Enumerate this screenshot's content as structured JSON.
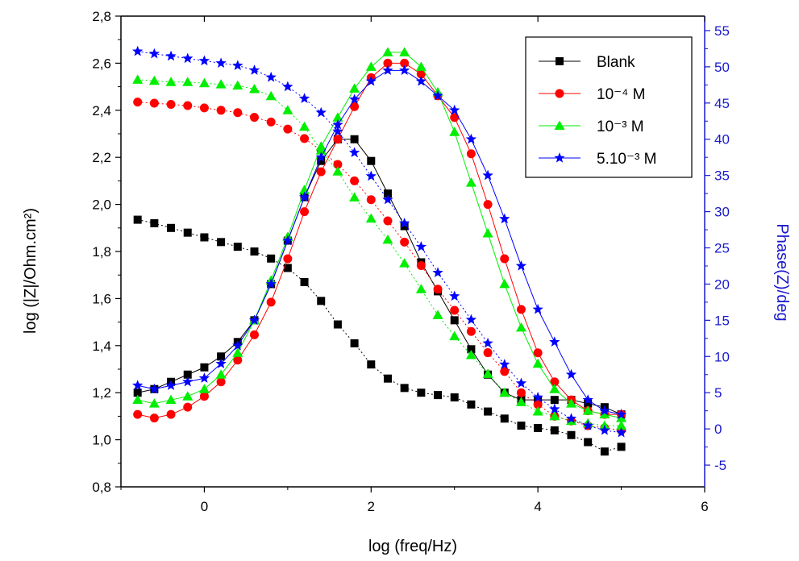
{
  "chart_data": {
    "type": "scatter",
    "xlabel": "log (freq/Hz)",
    "ylabel": "log (|Z|/Ohm.cm²)",
    "ylabel_right": "Phase(Z)/deg",
    "xlim": [
      -1,
      6
    ],
    "ylim": [
      0.8,
      2.8
    ],
    "ylim_right": [
      -8,
      57
    ],
    "x_ticks": [
      0,
      2,
      4,
      6
    ],
    "x_tick_labels": [
      "0",
      "2",
      "4",
      "6"
    ],
    "y_ticks": [
      0.8,
      1.0,
      1.2,
      1.4,
      1.6,
      1.8,
      2.0,
      2.2,
      2.4,
      2.6,
      2.8
    ],
    "y_tick_labels": [
      "0,8",
      "1,0",
      "1,2",
      "1,4",
      "1,6",
      "1,8",
      "2,0",
      "2,2",
      "2,4",
      "2,6",
      "2,8"
    ],
    "y_right_ticks": [
      -5,
      0,
      5,
      10,
      15,
      20,
      25,
      30,
      35,
      40,
      45,
      50,
      55
    ],
    "y_right_tick_labels": [
      "-5",
      "0",
      "5",
      "10",
      "15",
      "20",
      "25",
      "30",
      "35",
      "40",
      "45",
      "50",
      "55"
    ],
    "grid": false,
    "legend_position": "top-right",
    "x": [
      -0.8,
      -0.6,
      -0.4,
      -0.2,
      0.0,
      0.2,
      0.4,
      0.6,
      0.8,
      1.0,
      1.2,
      1.4,
      1.6,
      1.8,
      2.0,
      2.2,
      2.4,
      2.6,
      2.8,
      3.0,
      3.2,
      3.4,
      3.6,
      3.8,
      4.0,
      4.2,
      4.4,
      4.6,
      4.8,
      5.0
    ],
    "series": [
      {
        "name": "Blank",
        "color": "#000000",
        "marker": "square",
        "modulus": [
          1.935,
          1.92,
          1.9,
          1.88,
          1.86,
          1.84,
          1.82,
          1.8,
          1.77,
          1.73,
          1.67,
          1.59,
          1.49,
          1.41,
          1.32,
          1.26,
          1.22,
          1.2,
          1.19,
          1.18,
          1.15,
          1.12,
          1.09,
          1.06,
          1.05,
          1.04,
          1.02,
          0.99,
          0.95,
          0.97
        ],
        "phase": [
          5.0,
          5.5,
          6.5,
          7.5,
          8.5,
          10.0,
          12.0,
          15.0,
          20.0,
          26.0,
          32.0,
          37.0,
          40.0,
          40.0,
          37.0,
          32.5,
          28.0,
          23.0,
          19.0,
          15.0,
          11.0,
          7.5,
          5.0,
          4.0,
          4.0,
          4.0,
          4.0,
          3.5,
          3.0,
          2.0
        ]
      },
      {
        "name": "10⁻⁴ M",
        "color": "#ff0000",
        "marker": "circle",
        "modulus": [
          2.435,
          2.43,
          2.425,
          2.42,
          2.41,
          2.4,
          2.39,
          2.37,
          2.35,
          2.32,
          2.28,
          2.23,
          2.17,
          2.1,
          2.02,
          1.93,
          1.84,
          1.74,
          1.64,
          1.55,
          1.46,
          1.37,
          1.29,
          1.2,
          1.15,
          1.1,
          1.08,
          1.06,
          1.05,
          1.04
        ],
        "phase": [
          2.0,
          1.5,
          2.0,
          3.0,
          4.5,
          6.5,
          9.5,
          13.0,
          17.5,
          23.5,
          30.0,
          35.5,
          40.0,
          44.5,
          48.5,
          50.5,
          50.5,
          49.0,
          46.0,
          43.0,
          38.0,
          31.0,
          23.5,
          16.5,
          10.5,
          6.5,
          4.0,
          2.5,
          2.0,
          2.0
        ]
      },
      {
        "name": "10⁻³ M",
        "color": "#00ee00",
        "marker": "triangle",
        "modulus": [
          2.53,
          2.525,
          2.52,
          2.52,
          2.515,
          2.51,
          2.505,
          2.49,
          2.46,
          2.4,
          2.33,
          2.23,
          2.14,
          2.03,
          1.94,
          1.85,
          1.75,
          1.64,
          1.53,
          1.44,
          1.36,
          1.28,
          1.2,
          1.16,
          1.12,
          1.1,
          1.08,
          1.07,
          1.06,
          1.06
        ],
        "phase": [
          4.0,
          3.5,
          4.0,
          4.5,
          5.5,
          7.5,
          10.5,
          15.0,
          20.5,
          26.5,
          33.0,
          39.0,
          43.0,
          47.0,
          50.0,
          52.0,
          52.0,
          50.0,
          46.5,
          41.0,
          34.0,
          27.0,
          20.0,
          14.0,
          9.0,
          5.5,
          3.5,
          2.5,
          2.0,
          1.5
        ]
      },
      {
        "name": "5.10⁻³ M",
        "color": "#0000ff",
        "marker": "star",
        "modulus": [
          2.65,
          2.64,
          2.63,
          2.62,
          2.61,
          2.6,
          2.59,
          2.57,
          2.54,
          2.5,
          2.45,
          2.39,
          2.31,
          2.22,
          2.12,
          2.02,
          1.92,
          1.82,
          1.71,
          1.61,
          1.51,
          1.41,
          1.32,
          1.24,
          1.18,
          1.13,
          1.09,
          1.06,
          1.04,
          1.03
        ],
        "phase": [
          6.0,
          5.5,
          6.0,
          6.5,
          7.0,
          9.0,
          11.5,
          15.0,
          20.0,
          26.0,
          32.0,
          37.5,
          42.0,
          45.5,
          48.0,
          49.5,
          49.5,
          48.0,
          46.0,
          44.0,
          40.0,
          35.0,
          29.0,
          22.5,
          16.5,
          12.0,
          7.5,
          4.0,
          2.5,
          2.0
        ]
      }
    ]
  }
}
